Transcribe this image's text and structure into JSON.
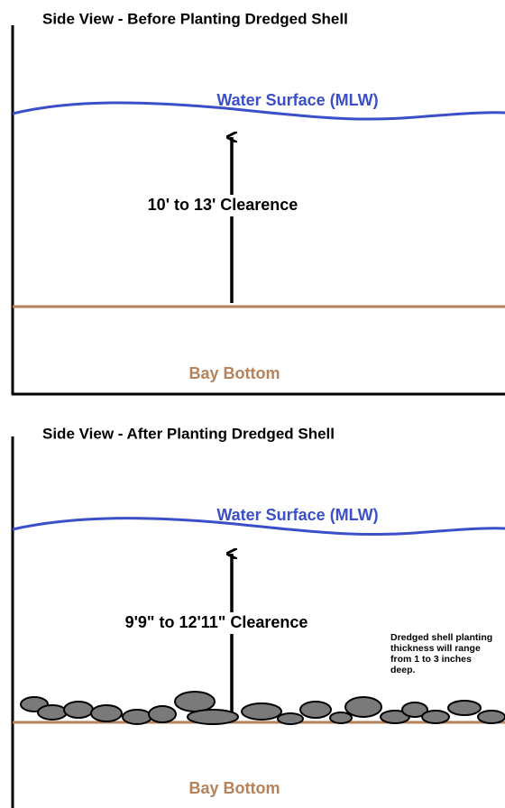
{
  "panels": [
    {
      "title": "Side View - Before Planting Dredged Shell",
      "water_label": "Water Surface (MLW)",
      "clearance": "10' to 13' Clearence",
      "bottom_label": "Bay Bottom"
    },
    {
      "title": "Side View - After Planting Dredged Shell",
      "water_label": "Water Surface (MLW)",
      "clearance": "9'9\" to 12'11\" Clearence",
      "note": [
        "Dredged shell planting",
        "thickness will range",
        "from 1 to 3 inches",
        "deep."
      ],
      "bottom_label": "Bay Bottom"
    }
  ]
}
